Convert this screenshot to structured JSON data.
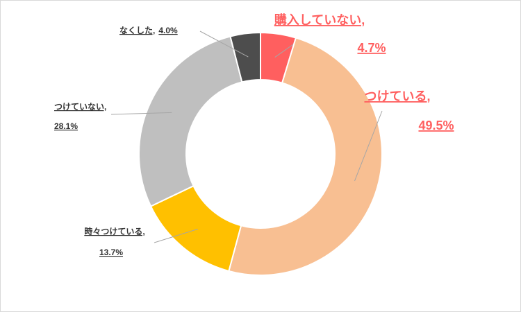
{
  "chart_data": {
    "type": "donut",
    "categories": [
      "購入していない,",
      "つけている,",
      "時々つけている,",
      "つけていない,",
      "なくした,"
    ],
    "values": [
      4.7,
      49.5,
      13.7,
      28.1,
      4.0
    ],
    "value_labels": [
      "4.7%",
      "49.5%",
      "13.7%",
      "28.1%",
      "4.0%"
    ],
    "colors": [
      "#ff5f5f",
      "#f8bf92",
      "#ffc000",
      "#bfbfbf",
      "#4d4d4d"
    ],
    "label_colors": [
      "#ff5f5f",
      "#ff5f5f",
      "#333333",
      "#333333",
      "#333333"
    ]
  }
}
